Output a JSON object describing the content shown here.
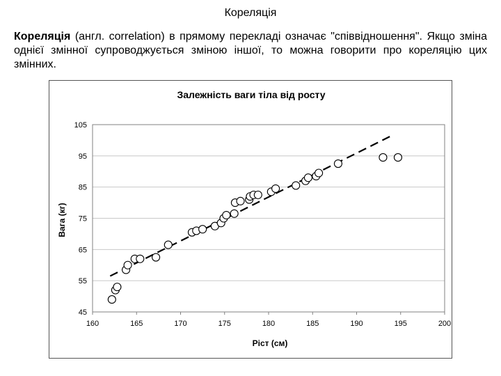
{
  "page": {
    "title": "Кореляція",
    "intro_term": "Кореляція",
    "intro_rest": " (англ. correlation) в прямому перекладі означає \"співвідношення\". Якщо зміна однієї змінної супроводжується зміною іншої, то можна говорити про кореляцію цих змінних."
  },
  "chart_data": {
    "type": "scatter",
    "title": "Залежність ваги тіла від росту",
    "xlabel": "Ріст (см)",
    "ylabel": "Вага (кг)",
    "xlim": [
      160,
      200
    ],
    "ylim": [
      45,
      105
    ],
    "xticks": [
      160,
      165,
      170,
      175,
      180,
      185,
      190,
      195,
      200
    ],
    "yticks": [
      45,
      55,
      65,
      75,
      85,
      95,
      105
    ],
    "grid": "horizontal",
    "legend": "none",
    "marker": "open-circle",
    "points": [
      [
        162.2,
        49
      ],
      [
        162.6,
        52
      ],
      [
        162.8,
        53
      ],
      [
        163.8,
        58.5
      ],
      [
        164,
        60
      ],
      [
        164.8,
        62
      ],
      [
        165.4,
        62
      ],
      [
        167.2,
        62.5
      ],
      [
        168.6,
        66.5
      ],
      [
        171.3,
        70.5
      ],
      [
        171.8,
        71
      ],
      [
        172.5,
        71.5
      ],
      [
        173.9,
        72.5
      ],
      [
        174.6,
        73.5
      ],
      [
        174.9,
        75
      ],
      [
        175.2,
        76
      ],
      [
        176.1,
        76.5
      ],
      [
        176.2,
        80
      ],
      [
        176.8,
        80.5
      ],
      [
        177.8,
        81
      ],
      [
        177.9,
        82
      ],
      [
        178.3,
        82.5
      ],
      [
        178.8,
        82.5
      ],
      [
        180.3,
        83.5
      ],
      [
        180.8,
        84.5
      ],
      [
        183.1,
        85.5
      ],
      [
        184.2,
        87
      ],
      [
        184.5,
        88
      ],
      [
        185.4,
        88.5
      ],
      [
        185.7,
        89.5
      ],
      [
        187.9,
        92.5
      ],
      [
        193.0,
        94.5
      ],
      [
        194.7,
        94.5
      ]
    ],
    "trendline": {
      "style": "dashed",
      "from": [
        162,
        56.5
      ],
      "to": [
        194,
        101.5
      ]
    }
  }
}
